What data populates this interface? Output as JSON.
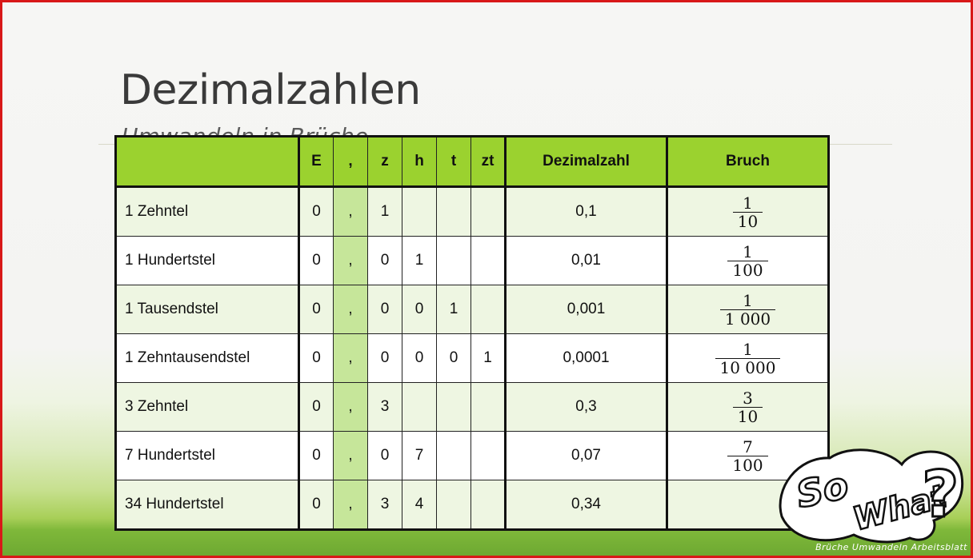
{
  "slide": {
    "title": "Dezimalzahlen",
    "subtitle": "Umwandeln in Brüche"
  },
  "table": {
    "headers": [
      "",
      "E",
      ",",
      "z",
      "h",
      "t",
      "zt",
      "Dezimalzahl",
      "Bruch"
    ],
    "rows": [
      {
        "label": "1 Zehntel",
        "E": "0",
        "comma": ",",
        "z": "1",
        "h": "",
        "t": "",
        "zt": "",
        "decimal": "0,1",
        "num": "1",
        "den": "10"
      },
      {
        "label": "1 Hundertstel",
        "E": "0",
        "comma": ",",
        "z": "0",
        "h": "1",
        "t": "",
        "zt": "",
        "decimal": "0,01",
        "num": "1",
        "den": "100"
      },
      {
        "label": "1 Tausendstel",
        "E": "0",
        "comma": ",",
        "z": "0",
        "h": "0",
        "t": "1",
        "zt": "",
        "decimal": "0,001",
        "num": "1",
        "den": "1 000"
      },
      {
        "label": "1 Zehntausendstel",
        "E": "0",
        "comma": ",",
        "z": "0",
        "h": "0",
        "t": "0",
        "zt": "1",
        "decimal": "0,0001",
        "num": "1",
        "den": "10 000"
      },
      {
        "label": "3 Zehntel",
        "E": "0",
        "comma": ",",
        "z": "3",
        "h": "",
        "t": "",
        "zt": "",
        "decimal": "0,3",
        "num": "3",
        "den": "10"
      },
      {
        "label": "7 Hundertstel",
        "E": "0",
        "comma": ",",
        "z": "0",
        "h": "7",
        "t": "",
        "zt": "",
        "decimal": "0,07",
        "num": "7",
        "den": "100"
      },
      {
        "label": "34 Hundertstel",
        "E": "0",
        "comma": ",",
        "z": "3",
        "h": "4",
        "t": "",
        "zt": "",
        "decimal": "0,34",
        "num": "",
        "den": ""
      }
    ]
  },
  "logo": {
    "text": "So What?",
    "icon": "so-what-logo"
  },
  "footer": {
    "text": "Brüche Umwandeln Arbeitsblatt"
  },
  "colors": {
    "header_green": "#9bd22f",
    "comma_column": "#c6e69a",
    "frame_border": "#d81818"
  }
}
